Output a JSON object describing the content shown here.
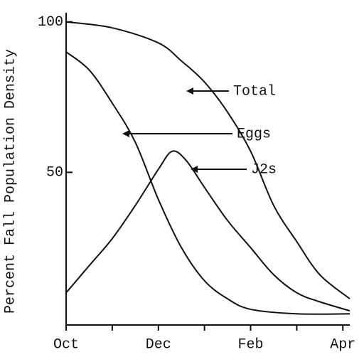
{
  "chart_data": {
    "type": "line",
    "y_label": "Percent Fall Population Density",
    "xlim": [
      0,
      6.15
    ],
    "ylim": [
      0,
      103
    ],
    "xticks": [
      {
        "value": 0,
        "label": "Oct"
      },
      {
        "value": 2,
        "label": "Dec"
      },
      {
        "value": 4,
        "label": "Feb"
      },
      {
        "value": 6,
        "label": "Apr"
      }
    ],
    "xminorticks": [
      1,
      3,
      5
    ],
    "yticks": [
      50,
      100
    ],
    "grid": false,
    "series": [
      {
        "name": "Total",
        "color": "#111111",
        "x": [
          0,
          1,
          2,
          2.5,
          3,
          3.5,
          4,
          4.5,
          5,
          5.5,
          6.15
        ],
        "values": [
          100,
          98,
          93,
          87,
          80,
          70,
          57,
          39,
          27,
          16,
          8
        ]
      },
      {
        "name": "Eggs",
        "color": "#111111",
        "x": [
          0,
          0.5,
          1,
          1.5,
          2,
          2.5,
          3,
          3.5,
          4,
          5,
          6.15
        ],
        "values": [
          90,
          84,
          73,
          60,
          41,
          25,
          14,
          8,
          4.5,
          3,
          3
        ]
      },
      {
        "name": "J2s",
        "color": "#111111",
        "x": [
          0,
          0.5,
          1,
          1.5,
          2,
          2.3,
          2.6,
          3,
          3.5,
          4,
          4.5,
          5,
          5.5,
          6.15
        ],
        "values": [
          10,
          19,
          28,
          39,
          51,
          57,
          54,
          45,
          34,
          25,
          16,
          10,
          7,
          4
        ]
      }
    ]
  }
}
